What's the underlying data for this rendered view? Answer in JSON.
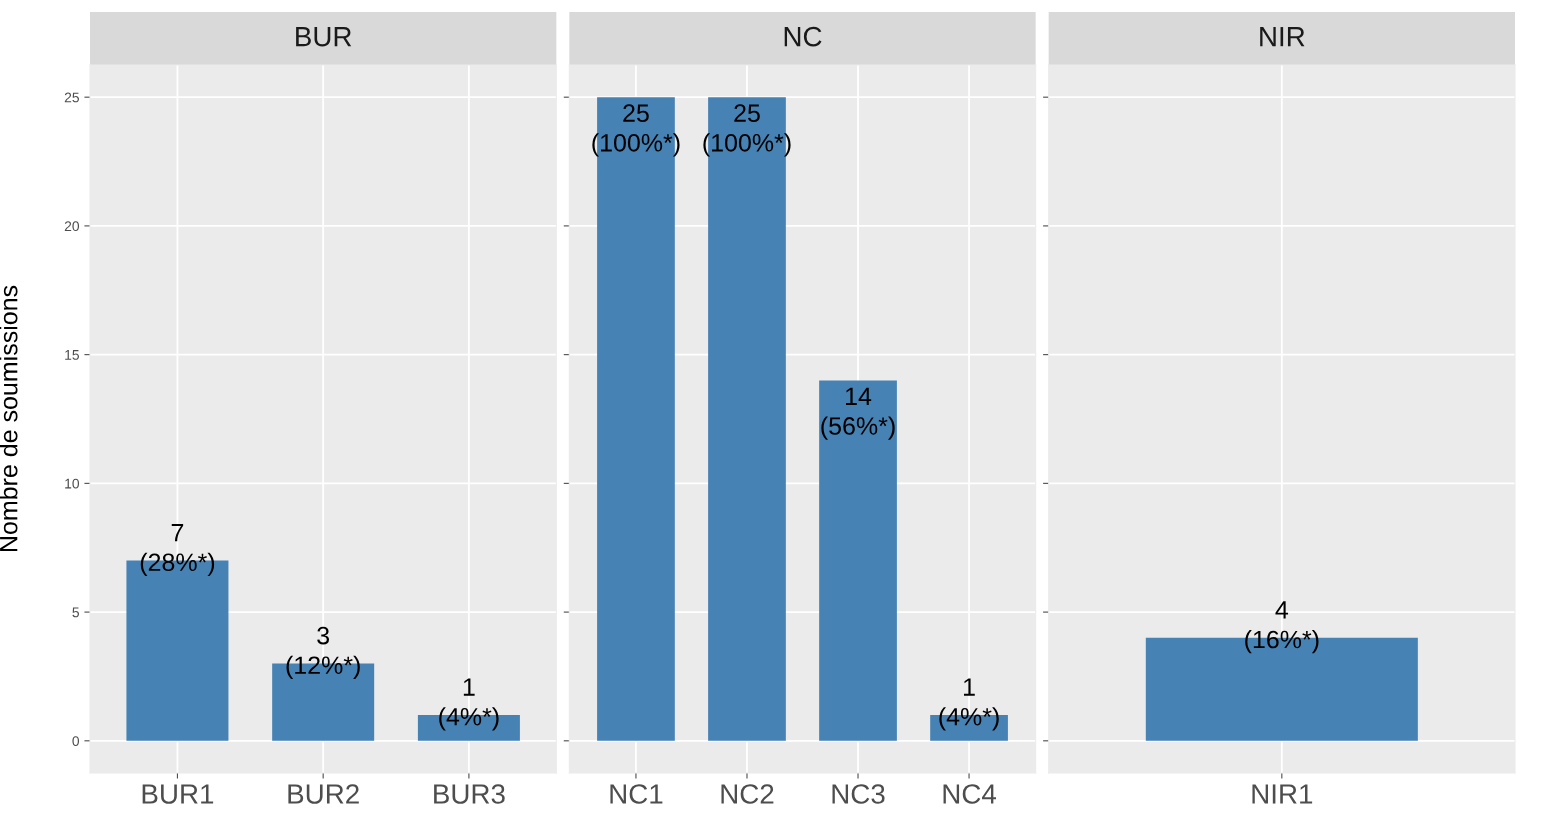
{
  "chart_data": [
    {
      "type": "bar",
      "title": "BUR",
      "ylabel": "Nombre de soumissions",
      "categories": [
        "BUR1",
        "BUR2",
        "BUR3"
      ],
      "values": [
        7,
        3,
        1
      ],
      "value_labels": [
        "7\n(28%*)",
        "3\n(12%*)",
        "1\n(4%*)"
      ],
      "color": "#4682b4",
      "ylim": [
        -1.25,
        26.25
      ],
      "yticks": [
        0,
        5,
        10,
        15,
        20,
        25
      ],
      "grid": true
    },
    {
      "type": "bar",
      "title": "NC",
      "categories": [
        "NC1",
        "NC2",
        "NC3",
        "NC4"
      ],
      "values": [
        25,
        25,
        14,
        1
      ],
      "value_labels": [
        "25\n(100%*)",
        "25\n(100%*)",
        "14\n(56%*)",
        "1\n(4%*)"
      ],
      "color": "#4682b4",
      "ylim": [
        -1.25,
        26.25
      ],
      "yticks": [
        0,
        5,
        10,
        15,
        20,
        25
      ],
      "grid": true,
      "tick_labels": "x"
    },
    {
      "type": "bar",
      "title": "NIR",
      "categories": [
        "NIR1"
      ],
      "values": [
        4
      ],
      "value_labels": [
        "4\n(16%*)"
      ],
      "color": "#4682b4",
      "ylim": [
        -1.25,
        26.25
      ],
      "yticks": [
        0,
        5,
        10,
        15,
        20,
        25
      ],
      "grid": true,
      "tick_labels": "x"
    }
  ]
}
